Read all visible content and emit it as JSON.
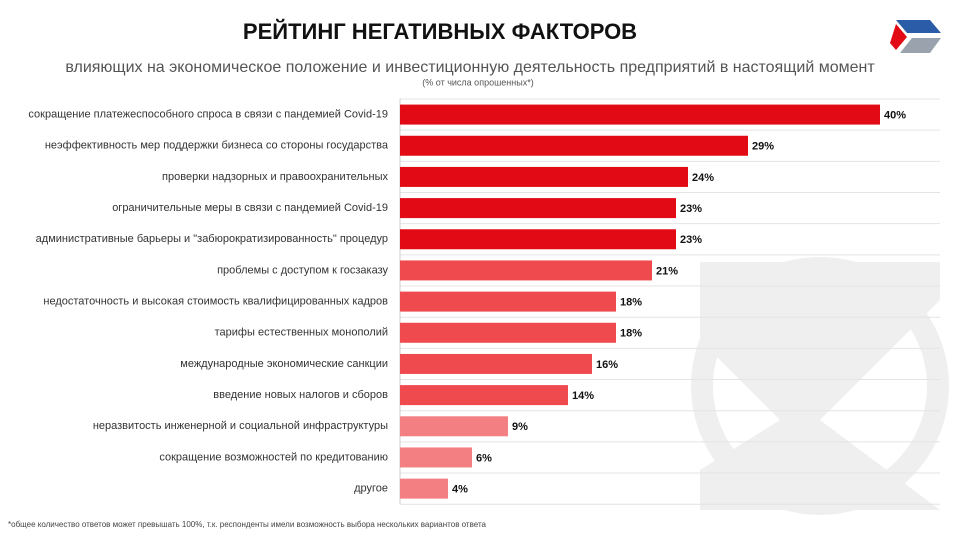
{
  "chart_data": {
    "type": "bar",
    "orientation": "horizontal",
    "title": "РЕЙТИНГ НЕГАТИВНЫХ ФАКТОРОВ",
    "subtitle": "влияющих на экономическое  положение и инвестиционную деятельность предприятий в настоящий момент",
    "note": "(% от числа опрошенных*)",
    "footnote": "*общее количество ответов  может превышать 100%, т.к. респонденты имели возможность выбора нескольких вариантов ответа",
    "categories": [
      "сокращение платежеспособного спроса в связи с пандемией Covid-19",
      "неэффективность мер поддержки бизнеса со стороны государства",
      "проверки надзорных и правоохранительных",
      "ограничительные меры в связи с пандемией Covid-19",
      "административные барьеры и \"забюрократизированность\" процедур",
      "проблемы с доступом к госзаказу",
      "недостаточность и высокая стоимость квалифицированных кадров",
      "тарифы естественных монополий",
      "международные экономические санкции",
      "введение новых налогов и сборов",
      "неразвитость инженерной и социальной инфраструктуры",
      "сокращение возможностей по кредитованию",
      "другое"
    ],
    "values": [
      40,
      29,
      24,
      23,
      23,
      21,
      18,
      18,
      16,
      14,
      9,
      6,
      4
    ],
    "value_labels": [
      "40%",
      "29%",
      "24%",
      "23%",
      "23%",
      "21%",
      "18%",
      "18%",
      "16%",
      "14%",
      "9%",
      "6%",
      "4%"
    ],
    "colors": [
      "#e20a14",
      "#e20a14",
      "#e20a14",
      "#e20a14",
      "#e20a14",
      "#ef4a4e",
      "#ef4a4e",
      "#ef4a4e",
      "#ef4a4e",
      "#ef4a4e",
      "#f47f82",
      "#f47f82",
      "#f47f82"
    ]
  }
}
